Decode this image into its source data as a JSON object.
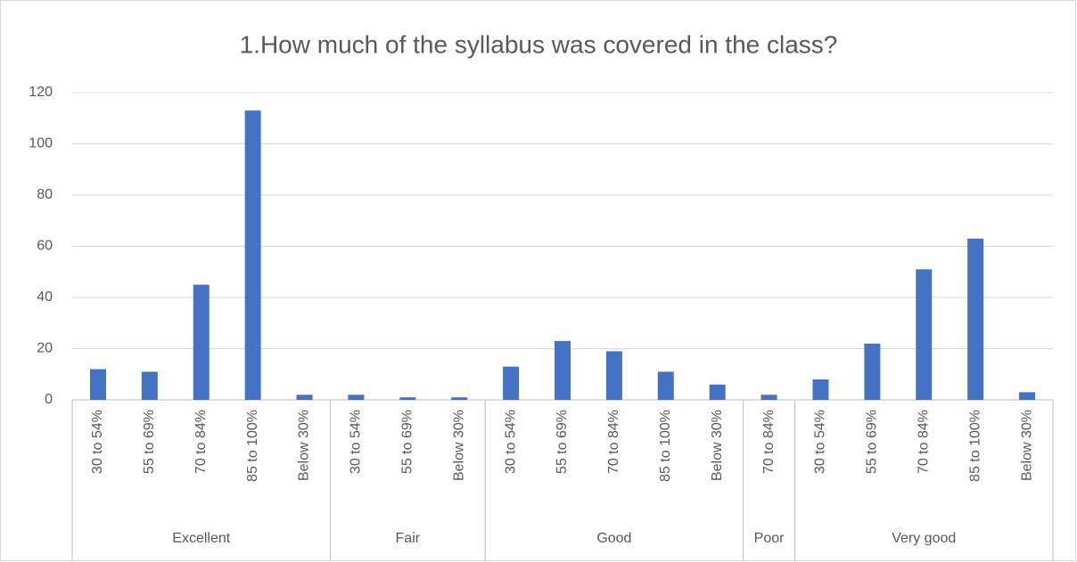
{
  "chart_data": {
    "type": "bar",
    "title": "1.How much of the syllabus was covered in the class?",
    "color": "#4472c4",
    "ylim": [
      0,
      120
    ],
    "yticks": [
      0,
      20,
      40,
      60,
      80,
      100,
      120
    ],
    "grid": true,
    "groups": [
      {
        "name": "Excellent",
        "categories": [
          "30 to 54%",
          "55 to 69%",
          "70 to 84%",
          "85 to 100%",
          "Below 30%"
        ],
        "values": [
          12,
          11,
          45,
          113,
          2
        ]
      },
      {
        "name": "Fair",
        "categories": [
          "30 to 54%",
          "55 to 69%",
          "Below 30%"
        ],
        "values": [
          2,
          1,
          1
        ]
      },
      {
        "name": "Good",
        "categories": [
          "30 to 54%",
          "55 to 69%",
          "70 to 84%",
          "85 to 100%",
          "Below 30%"
        ],
        "values": [
          13,
          23,
          19,
          11,
          6
        ]
      },
      {
        "name": "Poor",
        "categories": [
          "70 to 84%"
        ],
        "values": [
          2
        ]
      },
      {
        "name": "Very good",
        "categories": [
          "30 to 54%",
          "55 to 69%",
          "70 to 84%",
          "85 to 100%",
          "Below 30%"
        ],
        "values": [
          8,
          22,
          51,
          63,
          3
        ]
      }
    ]
  }
}
